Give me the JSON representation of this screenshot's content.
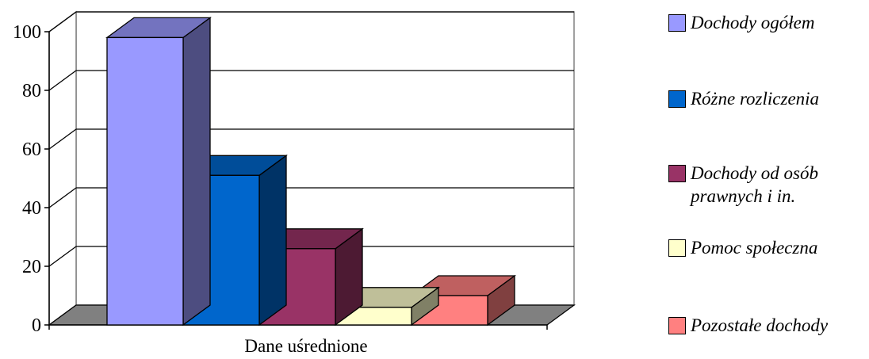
{
  "chart_data": {
    "type": "bar",
    "style": "3d-clustered",
    "categories": [
      "Dane uśrednione"
    ],
    "xlabel": "Dane uśrednione",
    "ylabel": "",
    "ylim": [
      0,
      100
    ],
    "yticks": [
      0,
      20,
      40,
      60,
      80,
      100
    ],
    "grid": true,
    "legend_position": "right",
    "series": [
      {
        "name": "Dochody ogółem",
        "values": [
          98
        ],
        "color": "#9999FF"
      },
      {
        "name": "Różne rozliczenia",
        "values": [
          51
        ],
        "color": "#0066CC"
      },
      {
        "name": "Dochody od osób prawnych i in.",
        "values": [
          26
        ],
        "color": "#993366"
      },
      {
        "name": "Pomoc społeczna",
        "values": [
          6
        ],
        "color": "#FFFFCC"
      },
      {
        "name": "Pozostałe dochody",
        "values": [
          10
        ],
        "color": "#FF8080"
      }
    ]
  },
  "legend_items": [
    {
      "label": "Dochody ogółem",
      "color": "#9999FF"
    },
    {
      "label": "Różne rozliczenia",
      "color": "#0066CC"
    },
    {
      "label": "Dochody od osób prawnych i in.",
      "color": "#993366"
    },
    {
      "label": "Pomoc społeczna",
      "color": "#FFFFCC"
    },
    {
      "label": "Pozostałe dochody",
      "color": "#FF8080"
    }
  ]
}
